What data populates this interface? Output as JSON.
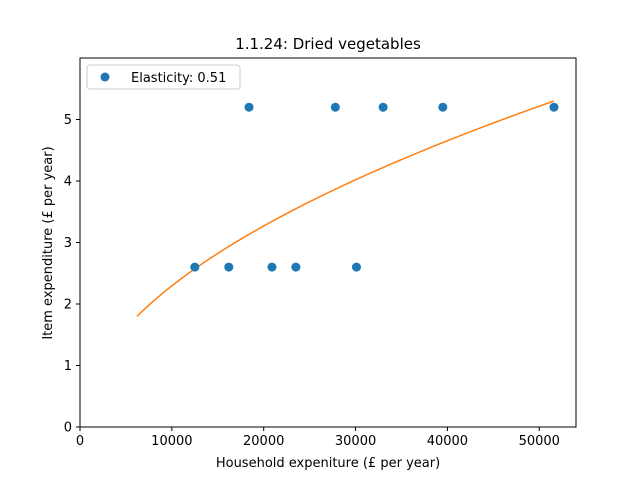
{
  "chart_data": {
    "type": "scatter",
    "title": "1.1.24: Dried vegetables",
    "xlabel": "Household expeniture (£ per year)",
    "ylabel": "Item expenditure (£ per year)",
    "xlim": [
      0,
      54000
    ],
    "ylim": [
      0,
      6.0
    ],
    "xticks": [
      0,
      10000,
      20000,
      30000,
      40000,
      50000
    ],
    "yticks": [
      0,
      1,
      2,
      3,
      4,
      5
    ],
    "grid": false,
    "legend_position": "top-left",
    "colors": {
      "points": "#1f77b4",
      "fit": "#ff7f0e"
    },
    "series": [
      {
        "name": "Elasticity: 0.51",
        "kind": "points",
        "x": [
          12500,
          16200,
          18400,
          20900,
          23500,
          27800,
          30100,
          33000,
          39500,
          51600
        ],
        "y": [
          2.6,
          2.6,
          5.2,
          2.6,
          2.6,
          5.2,
          2.6,
          5.2,
          5.2,
          5.2
        ]
      },
      {
        "name": "",
        "kind": "fit",
        "elasticity": 0.51,
        "x_range": [
          6200,
          51600
        ],
        "y_at_start": 1.81,
        "y_at_end": 5.3
      }
    ]
  }
}
